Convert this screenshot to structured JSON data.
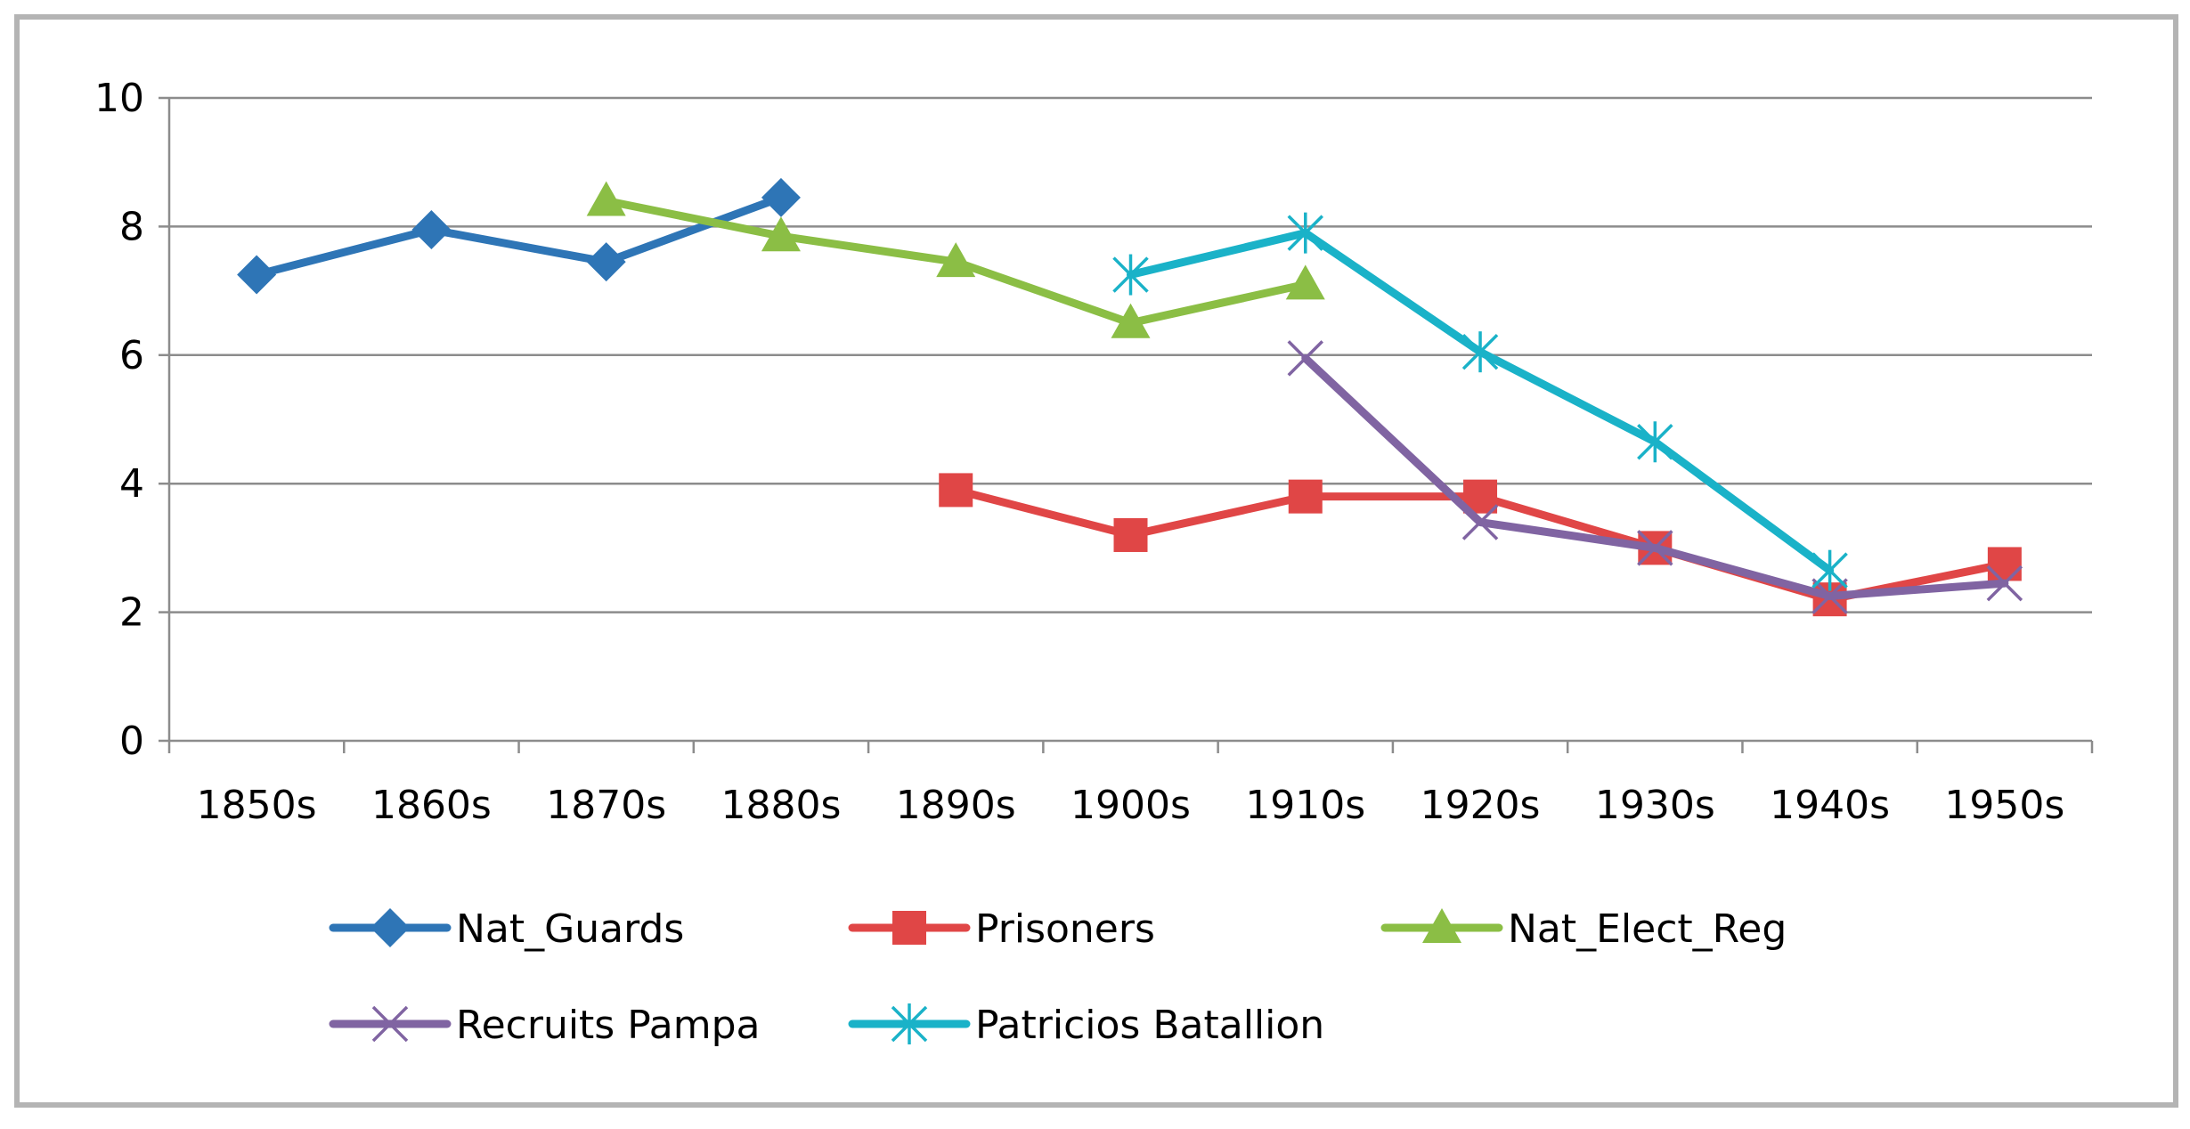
{
  "chart_data": {
    "type": "line",
    "title": "",
    "xlabel": "",
    "ylabel": "",
    "categories": [
      "1850s",
      "1860s",
      "1870s",
      "1880s",
      "1890s",
      "1900s",
      "1910s",
      "1920s",
      "1930s",
      "1940s",
      "1950s"
    ],
    "ylim": [
      0,
      10
    ],
    "yticks": [
      0,
      2,
      4,
      6,
      8,
      10
    ],
    "grid": true,
    "legend_position": "bottom",
    "series": [
      {
        "name": "Nat_Guards",
        "color": "#2e75b6",
        "marker": "diamond",
        "values": [
          7.25,
          7.95,
          7.45,
          8.45,
          null,
          null,
          null,
          null,
          null,
          null,
          null
        ]
      },
      {
        "name": "Prisoners",
        "color": "#e04646",
        "marker": "square",
        "values": [
          null,
          null,
          null,
          null,
          3.9,
          3.2,
          3.8,
          3.8,
          3.0,
          2.2,
          2.75
        ]
      },
      {
        "name": "Nat_Elect_Reg",
        "color": "#8bbe45",
        "marker": "triangle",
        "values": [
          null,
          null,
          8.4,
          7.85,
          7.45,
          6.5,
          7.1,
          null,
          null,
          null,
          null
        ]
      },
      {
        "name": "Recruits Pampa",
        "color": "#8064a2",
        "marker": "x",
        "values": [
          null,
          null,
          null,
          null,
          null,
          null,
          5.95,
          3.4,
          3.0,
          2.25,
          2.45
        ]
      },
      {
        "name": "Patricios Batallion",
        "color": "#1ab2c8",
        "marker": "star",
        "values": [
          null,
          null,
          null,
          null,
          null,
          7.25,
          7.9,
          6.05,
          4.65,
          2.65,
          null
        ]
      }
    ]
  }
}
